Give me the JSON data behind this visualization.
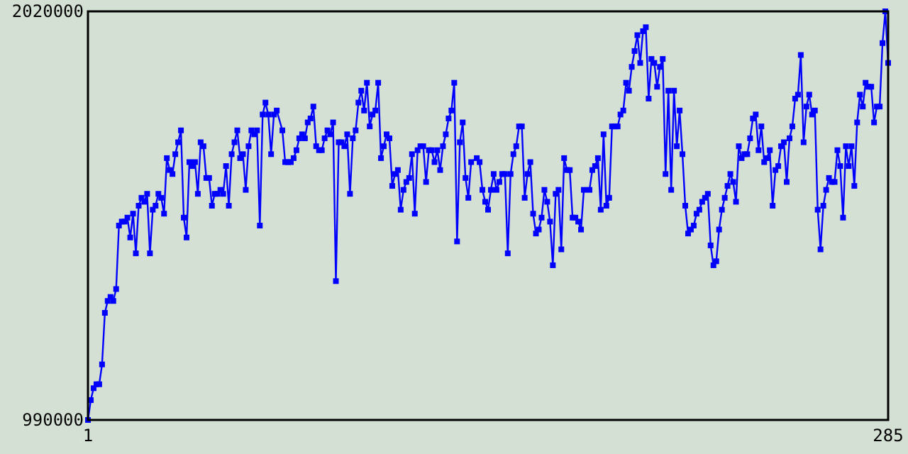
{
  "chart_data": {
    "type": "line",
    "marker": "square",
    "xlim": [
      1,
      285
    ],
    "xticks": [
      1,
      285
    ],
    "ylim": [
      990000,
      2020000
    ],
    "yticks": [
      990000,
      2020000
    ],
    "x": [
      1,
      2,
      3,
      4,
      5,
      6,
      7,
      8,
      9,
      10,
      11,
      12,
      13,
      14,
      15,
      16,
      17,
      18,
      19,
      20,
      21,
      22,
      23,
      24,
      25,
      26,
      27,
      28,
      29,
      30,
      31,
      32,
      33,
      34,
      35,
      36,
      37,
      38,
      39,
      40,
      41,
      42,
      43,
      44,
      45,
      46,
      47,
      48,
      49,
      50,
      51,
      52,
      53,
      54,
      55,
      56,
      57,
      58,
      59,
      60,
      61,
      62,
      63,
      64,
      65,
      66,
      67,
      68,
      70,
      71,
      72,
      73,
      74,
      75,
      76,
      77,
      78,
      79,
      80,
      81,
      82,
      83,
      84,
      85,
      86,
      87,
      88,
      89,
      90,
      91,
      92,
      93,
      94,
      95,
      96,
      97,
      98,
      99,
      100,
      101,
      102,
      103,
      104,
      105,
      106,
      107,
      108,
      109,
      110,
      111,
      112,
      113,
      114,
      115,
      116,
      117,
      118,
      119,
      120,
      121,
      122,
      123,
      124,
      125,
      126,
      127,
      128,
      129,
      130,
      131,
      132,
      133,
      134,
      135,
      136,
      137,
      139,
      140,
      141,
      142,
      143,
      144,
      145,
      146,
      147,
      148,
      149,
      150,
      151,
      152,
      153,
      154,
      155,
      156,
      157,
      158,
      159,
      160,
      161,
      162,
      163,
      164,
      165,
      166,
      167,
      168,
      169,
      170,
      171,
      172,
      173,
      174,
      175,
      176,
      177,
      179,
      180,
      181,
      182,
      183,
      184,
      185,
      186,
      187,
      188,
      189,
      190,
      191,
      192,
      193,
      194,
      195,
      196,
      197,
      198,
      199,
      200,
      201,
      202,
      203,
      204,
      205,
      206,
      207,
      208,
      209,
      210,
      211,
      212,
      213,
      214,
      215,
      216,
      217,
      218,
      219,
      220,
      221,
      222,
      223,
      224,
      225,
      226,
      227,
      228,
      229,
      230,
      231,
      232,
      233,
      234,
      235,
      236,
      237,
      238,
      239,
      240,
      241,
      242,
      243,
      244,
      245,
      246,
      247,
      248,
      249,
      250,
      251,
      252,
      253,
      254,
      255,
      256,
      257,
      258,
      259,
      260,
      261,
      262,
      263,
      264,
      265,
      266,
      267,
      268,
      269,
      270,
      271,
      272,
      273,
      274,
      275,
      276,
      277,
      278,
      279,
      280,
      281,
      282,
      283,
      284,
      285
    ],
    "series": [
      {
        "color": "#0000ff",
        "values": [
          990000,
          1040000,
          1070000,
          1080000,
          1080000,
          1130000,
          1260000,
          1290000,
          1300000,
          1290000,
          1320000,
          1480000,
          1490000,
          1490000,
          1500000,
          1450000,
          1510000,
          1410000,
          1530000,
          1550000,
          1540000,
          1560000,
          1410000,
          1520000,
          1530000,
          1560000,
          1550000,
          1510000,
          1650000,
          1620000,
          1610000,
          1660000,
          1690000,
          1720000,
          1500000,
          1450000,
          1640000,
          1630000,
          1640000,
          1560000,
          1690000,
          1680000,
          1600000,
          1600000,
          1530000,
          1560000,
          1560000,
          1570000,
          1560000,
          1630000,
          1530000,
          1660000,
          1690000,
          1720000,
          1650000,
          1660000,
          1570000,
          1680000,
          1720000,
          1710000,
          1720000,
          1480000,
          1760000,
          1790000,
          1760000,
          1660000,
          1760000,
          1770000,
          1720000,
          1640000,
          1640000,
          1640000,
          1650000,
          1670000,
          1700000,
          1710000,
          1700000,
          1740000,
          1750000,
          1780000,
          1680000,
          1670000,
          1670000,
          1700000,
          1720000,
          1710000,
          1740000,
          1340000,
          1690000,
          1690000,
          1680000,
          1710000,
          1560000,
          1700000,
          1720000,
          1790000,
          1820000,
          1770000,
          1840000,
          1730000,
          1760000,
          1770000,
          1840000,
          1650000,
          1680000,
          1710000,
          1700000,
          1580000,
          1610000,
          1620000,
          1520000,
          1570000,
          1590000,
          1600000,
          1660000,
          1510000,
          1670000,
          1680000,
          1680000,
          1590000,
          1670000,
          1670000,
          1640000,
          1670000,
          1620000,
          1680000,
          1710000,
          1750000,
          1770000,
          1840000,
          1440000,
          1690000,
          1740000,
          1600000,
          1550000,
          1640000,
          1650000,
          1640000,
          1570000,
          1540000,
          1520000,
          1570000,
          1610000,
          1570000,
          1590000,
          1610000,
          1610000,
          1410000,
          1610000,
          1660000,
          1680000,
          1730000,
          1730000,
          1550000,
          1610000,
          1640000,
          1510000,
          1460000,
          1470000,
          1500000,
          1570000,
          1540000,
          1490000,
          1380000,
          1560000,
          1570000,
          1420000,
          1650000,
          1620000,
          1620000,
          1500000,
          1500000,
          1490000,
          1470000,
          1570000,
          1570000,
          1620000,
          1630000,
          1650000,
          1520000,
          1710000,
          1530000,
          1550000,
          1730000,
          1730000,
          1730000,
          1760000,
          1770000,
          1840000,
          1820000,
          1880000,
          1920000,
          1960000,
          1890000,
          1970000,
          1980000,
          1800000,
          1900000,
          1890000,
          1830000,
          1880000,
          1900000,
          1610000,
          1820000,
          1570000,
          1820000,
          1680000,
          1770000,
          1660000,
          1530000,
          1460000,
          1470000,
          1480000,
          1510000,
          1520000,
          1540000,
          1550000,
          1560000,
          1430000,
          1380000,
          1390000,
          1470000,
          1520000,
          1550000,
          1580000,
          1610000,
          1590000,
          1540000,
          1680000,
          1650000,
          1660000,
          1660000,
          1700000,
          1750000,
          1760000,
          1670000,
          1730000,
          1640000,
          1650000,
          1670000,
          1530000,
          1620000,
          1630000,
          1680000,
          1690000,
          1590000,
          1700000,
          1730000,
          1800000,
          1810000,
          1910000,
          1690000,
          1780000,
          1810000,
          1760000,
          1770000,
          1520000,
          1420000,
          1530000,
          1570000,
          1600000,
          1590000,
          1590000,
          1670000,
          1630000,
          1500000,
          1680000,
          1630000,
          1680000,
          1580000,
          1740000,
          1810000,
          1780000,
          1840000,
          1830000,
          1830000,
          1740000,
          1780000,
          1780000,
          1940000,
          2020000,
          1890000
        ]
      }
    ]
  }
}
